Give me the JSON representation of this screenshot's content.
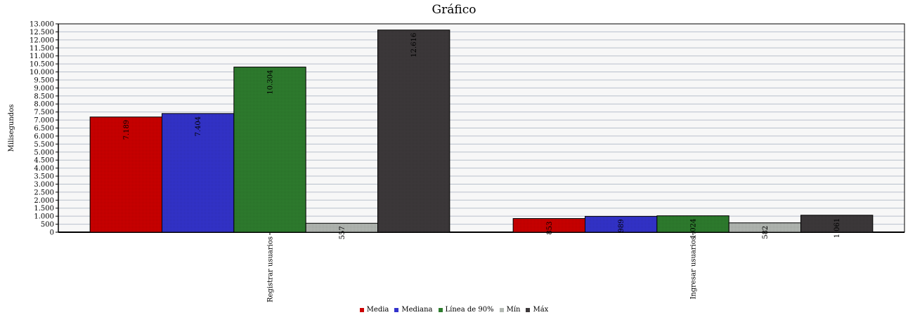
{
  "chart_data": {
    "type": "bar",
    "title": "Gráfico",
    "ylabel": "Milisegundos",
    "xlabel": "",
    "categories": [
      "Registrar usuarios",
      "Ingresar usuarios"
    ],
    "ylim": [
      0,
      13000
    ],
    "ytick_step": 500,
    "grid": true,
    "legend_position": "bottom",
    "series": [
      {
        "name": "Media",
        "color": "#cc0000",
        "values": [
          7189,
          853
        ],
        "labels": [
          "7.189",
          "853"
        ]
      },
      {
        "name": "Mediana",
        "color": "#3333cc",
        "values": [
          7404,
          989
        ],
        "labels": [
          "7.404",
          "989"
        ]
      },
      {
        "name": "Línea de 90%",
        "color": "#2e7d2e",
        "values": [
          10304,
          1024
        ],
        "labels": [
          "10.304",
          "1.024"
        ]
      },
      {
        "name": "Mín",
        "color": "#b3b8b3",
        "values": [
          557,
          582
        ],
        "labels": [
          "557",
          "582"
        ]
      },
      {
        "name": "Máx",
        "color": "#3d393b",
        "values": [
          12616,
          1061
        ],
        "labels": [
          "12.616",
          "1.061"
        ]
      }
    ]
  }
}
